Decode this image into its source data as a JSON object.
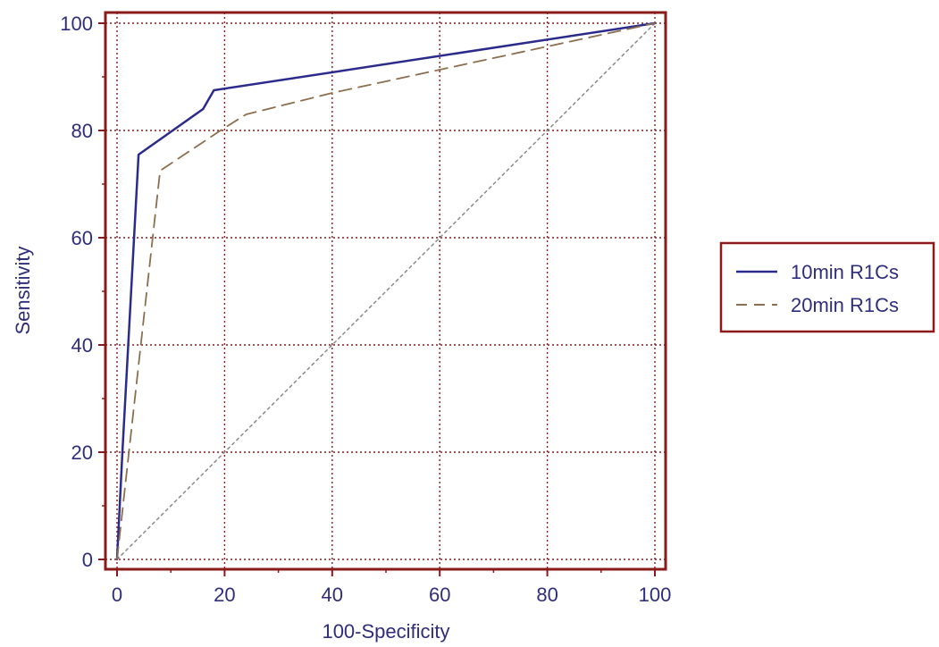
{
  "chart_data": {
    "type": "line",
    "xlabel": "100-Specificity",
    "ylabel": "Sensitivity",
    "xlim": [
      0,
      100
    ],
    "ylim": [
      0,
      100
    ],
    "x_ticks": [
      0,
      20,
      40,
      60,
      80,
      100
    ],
    "y_ticks": [
      0,
      20,
      40,
      60,
      80,
      100
    ],
    "grid": true,
    "legend_position": "right",
    "series": [
      {
        "name": "10min R1Cs",
        "style": "solid",
        "color": "#2b2b8c",
        "x": [
          0,
          1,
          4,
          16,
          18,
          100
        ],
        "y": [
          0,
          20,
          75.5,
          84,
          87.5,
          100
        ]
      },
      {
        "name": "20min R1Cs",
        "style": "dashed",
        "color": "#8b6f4e",
        "x": [
          0,
          8,
          20,
          24,
          40,
          100
        ],
        "y": [
          0,
          72.5,
          80.5,
          83,
          87,
          100
        ]
      },
      {
        "name": "",
        "style": "dotted",
        "color": "#8a8a8a",
        "x": [
          0,
          100
        ],
        "y": [
          0,
          100
        ]
      }
    ]
  },
  "colors": {
    "frame": "#8b1a1a",
    "grid": "#8b1a1a",
    "text": "#2e2e7a"
  }
}
